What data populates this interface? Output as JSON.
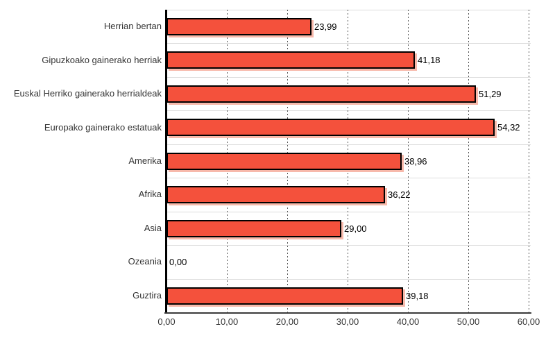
{
  "chart_data": {
    "type": "bar",
    "orientation": "horizontal",
    "title": "",
    "xlabel": "",
    "ylabel": "",
    "categories": [
      "Herrian bertan",
      "Gipuzkoako gainerako herriak",
      "Euskal Herriko gainerako herrialdeak",
      "Europako gainerako estatuak",
      "Amerika",
      "Afrika",
      "Asia",
      "Ozeania",
      "Guztira"
    ],
    "values": [
      23.99,
      41.18,
      51.29,
      54.32,
      38.96,
      36.22,
      29.0,
      0.0,
      39.18
    ],
    "value_labels": [
      "23,99",
      "41,18",
      "51,29",
      "54,32",
      "38,96",
      "36,22",
      "29,00",
      "0,00",
      "39,18"
    ],
    "x_ticks": [
      0,
      10,
      20,
      30,
      40,
      50,
      60
    ],
    "x_tick_labels": [
      "0,00",
      "10,00",
      "20,00",
      "30,00",
      "40,00",
      "50,00",
      "60,00"
    ],
    "xlim": [
      0,
      60
    ],
    "grid": "vertical-dotted-and-horizontal-category-lines",
    "legend": "none",
    "colors": {
      "bar_fill": "#f4513c",
      "bar_border": "#000000",
      "bar_shadow": "#f7b9ab",
      "h_gridline": "#dcdcdc",
      "v_gridline": "#555555",
      "x_axis": "#3a3a3a",
      "y_axis": "#000000",
      "category_text": "#333333",
      "value_text": "#000000",
      "tick_text": "#333333",
      "background": "#ffffff"
    }
  }
}
